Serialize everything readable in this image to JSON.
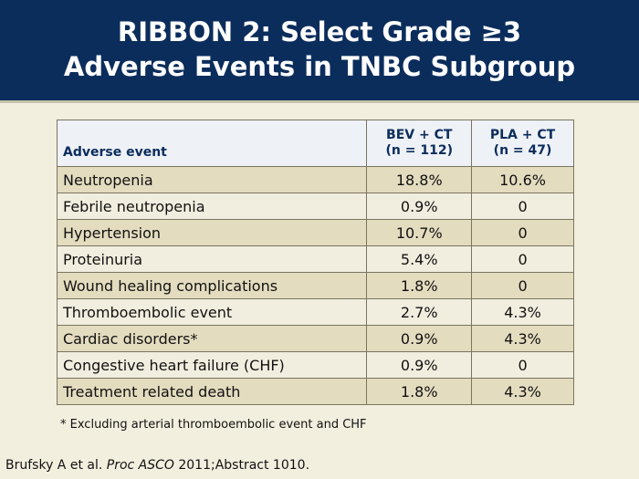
{
  "header": {
    "title_lines": [
      "RIBBON 2: Select Grade ≥3",
      "Adverse Events in TNBC Subgroup"
    ]
  },
  "table": {
    "columns": [
      {
        "lines": [
          "Adverse event"
        ]
      },
      {
        "lines": [
          "BEV + CT",
          "(n = 112)"
        ]
      },
      {
        "lines": [
          "PLA + CT",
          "(n = 47)"
        ]
      }
    ],
    "rows": [
      [
        "Neutropenia",
        "18.8%",
        "10.6%"
      ],
      [
        "Febrile neutropenia",
        "0.9%",
        "0"
      ],
      [
        "Hypertension",
        "10.7%",
        "0"
      ],
      [
        "Proteinuria",
        "5.4%",
        "0"
      ],
      [
        "Wound healing complications",
        "1.8%",
        "0"
      ],
      [
        "Thromboembolic event",
        "2.7%",
        "4.3%"
      ],
      [
        "Cardiac disorders*",
        "0.9%",
        "4.3%"
      ],
      [
        "Congestive heart failure (CHF)",
        "0.9%",
        "0"
      ],
      [
        "Treatment related death",
        "1.8%",
        "4.3%"
      ]
    ]
  },
  "footnote": "* Excluding arterial thromboembolic event and CHF",
  "citation": {
    "author": "Brufsky A et al. ",
    "journal": "Proc ASCO",
    "rest": " 2011;Abstract 1010."
  }
}
